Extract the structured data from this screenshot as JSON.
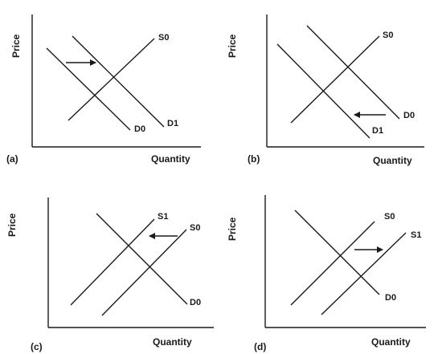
{
  "panels": [
    {
      "id": "a",
      "panel_label": "(a)",
      "ylabel": "Price",
      "xlabel": "Quantity",
      "curves": [
        {
          "type": "supply",
          "label": "S0"
        },
        {
          "type": "demand",
          "label": "D0"
        },
        {
          "type": "demand",
          "label": "D1"
        }
      ],
      "arrow_direction": "right"
    },
    {
      "id": "b",
      "panel_label": "(b)",
      "ylabel": "Price",
      "xlabel": "Quantity",
      "curves": [
        {
          "type": "supply",
          "label": "S0"
        },
        {
          "type": "demand",
          "label": "D0"
        },
        {
          "type": "demand",
          "label": "D1"
        }
      ],
      "arrow_direction": "left"
    },
    {
      "id": "c",
      "panel_label": "(c)",
      "ylabel": "Price",
      "xlabel": "Quantity",
      "curves": [
        {
          "type": "supply",
          "label": "S1"
        },
        {
          "type": "supply",
          "label": "S0"
        },
        {
          "type": "demand",
          "label": "D0"
        }
      ],
      "arrow_direction": "left"
    },
    {
      "id": "d",
      "panel_label": "(d)",
      "ylabel": "Price",
      "xlabel": "Quantity",
      "curves": [
        {
          "type": "supply",
          "label": "S0"
        },
        {
          "type": "supply",
          "label": "S1"
        },
        {
          "type": "demand",
          "label": "D0"
        }
      ],
      "arrow_direction": "right"
    }
  ]
}
